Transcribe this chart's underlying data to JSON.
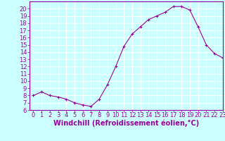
{
  "x": [
    0,
    1,
    2,
    3,
    4,
    5,
    6,
    7,
    8,
    9,
    10,
    11,
    12,
    13,
    14,
    15,
    16,
    17,
    18,
    19,
    20,
    21,
    22,
    23
  ],
  "y": [
    8.0,
    8.5,
    8.0,
    7.8,
    7.5,
    7.0,
    6.7,
    6.5,
    7.5,
    9.5,
    12.0,
    14.8,
    16.5,
    17.5,
    18.5,
    19.0,
    19.5,
    20.3,
    20.3,
    19.8,
    17.5,
    15.0,
    13.8,
    13.2
  ],
  "line_color": "#990099",
  "marker": "+",
  "marker_color": "#990099",
  "xlabel": "Windchill (Refroidissement éolien,°C)",
  "ylim": [
    6,
    21
  ],
  "xlim": [
    -0.5,
    23
  ],
  "yticks": [
    6,
    7,
    8,
    9,
    10,
    11,
    12,
    13,
    14,
    15,
    16,
    17,
    18,
    19,
    20
  ],
  "xticks": [
    0,
    1,
    2,
    3,
    4,
    5,
    6,
    7,
    8,
    9,
    10,
    11,
    12,
    13,
    14,
    15,
    16,
    17,
    18,
    19,
    20,
    21,
    22,
    23
  ],
  "background_color": "#ccffff",
  "grid_color": "#ffffff",
  "axis_color": "#990099",
  "tick_color": "#990099",
  "label_color": "#990099",
  "tick_fontsize": 6,
  "xlabel_fontsize": 7
}
